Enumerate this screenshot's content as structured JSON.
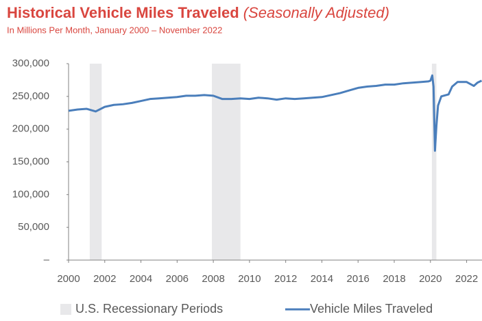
{
  "chart_data": {
    "type": "line",
    "title": "Historical Vehicle Miles Traveled",
    "title_note": "(Seasonally Adjusted)",
    "subtitle": "In Millions Per Month, January 2000 – November 2022",
    "x": [
      2000.0,
      2000.5,
      2001.0,
      2001.5,
      2002.0,
      2002.5,
      2003.0,
      2003.5,
      2004.0,
      2004.5,
      2005.0,
      2005.5,
      2006.0,
      2006.5,
      2007.0,
      2007.5,
      2008.0,
      2008.5,
      2009.0,
      2009.5,
      2010.0,
      2010.5,
      2011.0,
      2011.5,
      2012.0,
      2012.5,
      2013.0,
      2013.5,
      2014.0,
      2014.5,
      2015.0,
      2015.5,
      2016.0,
      2016.5,
      2017.0,
      2017.5,
      2018.0,
      2018.5,
      2019.0,
      2019.5,
      2019.9,
      2020.0,
      2020.1,
      2020.17,
      2020.25,
      2020.33,
      2020.42,
      2020.6,
      2021.0,
      2021.2,
      2021.5,
      2022.0,
      2022.4,
      2022.6,
      2022.83
    ],
    "series": [
      {
        "name": "Vehicle Miles Traveled",
        "color": "#4a7ebb",
        "values": [
          228000,
          230000,
          231000,
          227000,
          234000,
          237000,
          238000,
          240000,
          243000,
          246000,
          247000,
          248000,
          249000,
          251000,
          251000,
          252000,
          251000,
          246000,
          246000,
          247000,
          246000,
          248000,
          247000,
          245000,
          247000,
          246000,
          247000,
          248000,
          249000,
          252000,
          255000,
          259000,
          263000,
          265000,
          266000,
          268000,
          268000,
          270000,
          271000,
          272000,
          273000,
          274000,
          282000,
          265000,
          167000,
          205000,
          236000,
          250000,
          253000,
          265000,
          272000,
          272000,
          266000,
          271000,
          274000
        ]
      }
    ],
    "shaded_regions": {
      "name": "U.S. Recessionary Periods",
      "color": "#e8e8ea",
      "spans": [
        [
          2001.17,
          2001.83
        ],
        [
          2007.92,
          2009.5
        ],
        [
          2020.08,
          2020.33
        ]
      ]
    },
    "xlim": [
      2000,
      2022.85
    ],
    "xticks": [
      2000,
      2002,
      2004,
      2006,
      2008,
      2010,
      2012,
      2014,
      2016,
      2018,
      2020,
      2022
    ],
    "ylim": [
      0,
      300000
    ],
    "yticks": [
      {
        "value": 0,
        "label": "–"
      },
      {
        "value": 50000,
        "label": "50,000"
      },
      {
        "value": 100000,
        "label": "100,000"
      },
      {
        "value": 150000,
        "label": "150,000"
      },
      {
        "value": 200000,
        "label": "200,000"
      },
      {
        "value": 250000,
        "label": "250,000"
      },
      {
        "value": 300000,
        "label": "300,000"
      }
    ],
    "grid": false
  }
}
